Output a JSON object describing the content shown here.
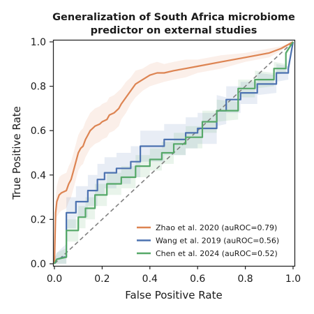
{
  "chart_data": {
    "type": "line",
    "title_line1": "Generalization of South Africa microbiome",
    "title_line2": "predictor on external studies",
    "xlabel": "False Positive Rate",
    "ylabel": "True Positive Rate",
    "xlim": [
      0,
      1
    ],
    "ylim": [
      0,
      1
    ],
    "xticks": [
      "0.0",
      "0.2",
      "0.4",
      "0.6",
      "0.8",
      "1.0"
    ],
    "yticks": [
      "0.0",
      "0.2",
      "0.4",
      "0.6",
      "0.8",
      "1.0"
    ],
    "grid": false,
    "legend_position": "lower-right",
    "diagonal": {
      "color": "#808080",
      "style": "dashed"
    },
    "series": [
      {
        "name": "Zhao et al. 2020 (auROC=0.79)",
        "color": "#dd8452",
        "x": [
          0,
          0.005,
          0.01,
          0.02,
          0.03,
          0.05,
          0.06,
          0.07,
          0.08,
          0.09,
          0.1,
          0.11,
          0.12,
          0.13,
          0.14,
          0.15,
          0.17,
          0.19,
          0.2,
          0.22,
          0.23,
          0.25,
          0.27,
          0.28,
          0.3,
          0.32,
          0.34,
          0.37,
          0.4,
          0.43,
          0.46,
          0.5,
          0.55,
          0.6,
          0.7,
          0.8,
          0.9,
          0.95,
          1.0
        ],
        "y": [
          0,
          0.23,
          0.28,
          0.31,
          0.32,
          0.33,
          0.36,
          0.38,
          0.42,
          0.46,
          0.5,
          0.52,
          0.53,
          0.56,
          0.58,
          0.6,
          0.62,
          0.63,
          0.64,
          0.65,
          0.67,
          0.68,
          0.7,
          0.72,
          0.75,
          0.78,
          0.81,
          0.83,
          0.85,
          0.86,
          0.86,
          0.87,
          0.88,
          0.89,
          0.91,
          0.93,
          0.95,
          0.97,
          1.0
        ],
        "band": [
          0.07,
          0.06,
          0.07,
          0.08,
          0.08,
          0.08,
          0.08,
          0.08,
          0.08,
          0.08,
          0.08,
          0.08,
          0.08,
          0.08,
          0.08,
          0.08,
          0.08,
          0.08,
          0.08,
          0.08,
          0.08,
          0.08,
          0.08,
          0.07,
          0.07,
          0.06,
          0.06,
          0.05,
          0.05,
          0.05,
          0.04,
          0.04,
          0.04,
          0.03,
          0.03,
          0.02,
          0.02,
          0.01,
          0
        ]
      },
      {
        "name": "Wang et al. 2019 (auROC=0.56)",
        "color": "#4c72b0",
        "x": [
          0,
          0.01,
          0.04,
          0.05,
          0.05,
          0.09,
          0.09,
          0.14,
          0.14,
          0.18,
          0.18,
          0.21,
          0.21,
          0.26,
          0.26,
          0.32,
          0.32,
          0.36,
          0.36,
          0.46,
          0.46,
          0.55,
          0.55,
          0.6,
          0.6,
          0.68,
          0.68,
          0.72,
          0.72,
          0.78,
          0.78,
          0.85,
          0.85,
          0.93,
          0.93,
          0.98,
          0.98,
          1.0
        ],
        "y": [
          0,
          0.02,
          0.03,
          0.03,
          0.23,
          0.23,
          0.28,
          0.28,
          0.33,
          0.33,
          0.38,
          0.38,
          0.41,
          0.41,
          0.43,
          0.43,
          0.46,
          0.46,
          0.53,
          0.53,
          0.56,
          0.56,
          0.59,
          0.59,
          0.61,
          0.61,
          0.69,
          0.69,
          0.74,
          0.74,
          0.77,
          0.77,
          0.81,
          0.81,
          0.86,
          0.86,
          0.88,
          1.0
        ],
        "band": [
          0.02,
          0.03,
          0.05,
          0.06,
          0.07,
          0.07,
          0.07,
          0.07,
          0.07,
          0.07,
          0.07,
          0.07,
          0.07,
          0.07,
          0.07,
          0.07,
          0.07,
          0.07,
          0.07,
          0.07,
          0.07,
          0.07,
          0.07,
          0.07,
          0.07,
          0.07,
          0.07,
          0.06,
          0.06,
          0.06,
          0.05,
          0.05,
          0.05,
          0.04,
          0.04,
          0.03,
          0.03,
          0
        ]
      },
      {
        "name": "Chen et al. 2024 (auROC=0.52)",
        "color": "#55a868",
        "x": [
          0,
          0.01,
          0.05,
          0.05,
          0.1,
          0.1,
          0.13,
          0.13,
          0.17,
          0.17,
          0.22,
          0.22,
          0.28,
          0.28,
          0.34,
          0.34,
          0.4,
          0.4,
          0.45,
          0.45,
          0.5,
          0.5,
          0.55,
          0.55,
          0.62,
          0.62,
          0.68,
          0.68,
          0.77,
          0.77,
          0.84,
          0.84,
          0.92,
          0.92,
          0.97,
          0.97,
          1.0
        ],
        "y": [
          0,
          0.02,
          0.03,
          0.15,
          0.15,
          0.21,
          0.21,
          0.25,
          0.25,
          0.31,
          0.31,
          0.36,
          0.36,
          0.39,
          0.39,
          0.44,
          0.44,
          0.47,
          0.47,
          0.5,
          0.5,
          0.54,
          0.54,
          0.57,
          0.57,
          0.64,
          0.64,
          0.69,
          0.69,
          0.79,
          0.79,
          0.83,
          0.83,
          0.88,
          0.88,
          0.95,
          1.0
        ],
        "band": [
          0.02,
          0.03,
          0.04,
          0.05,
          0.05,
          0.05,
          0.05,
          0.05,
          0.05,
          0.05,
          0.05,
          0.05,
          0.05,
          0.05,
          0.05,
          0.05,
          0.05,
          0.05,
          0.05,
          0.05,
          0.05,
          0.05,
          0.05,
          0.05,
          0.05,
          0.05,
          0.05,
          0.05,
          0.04,
          0.04,
          0.04,
          0.04,
          0.03,
          0.03,
          0.02,
          0.02,
          0
        ]
      }
    ]
  }
}
